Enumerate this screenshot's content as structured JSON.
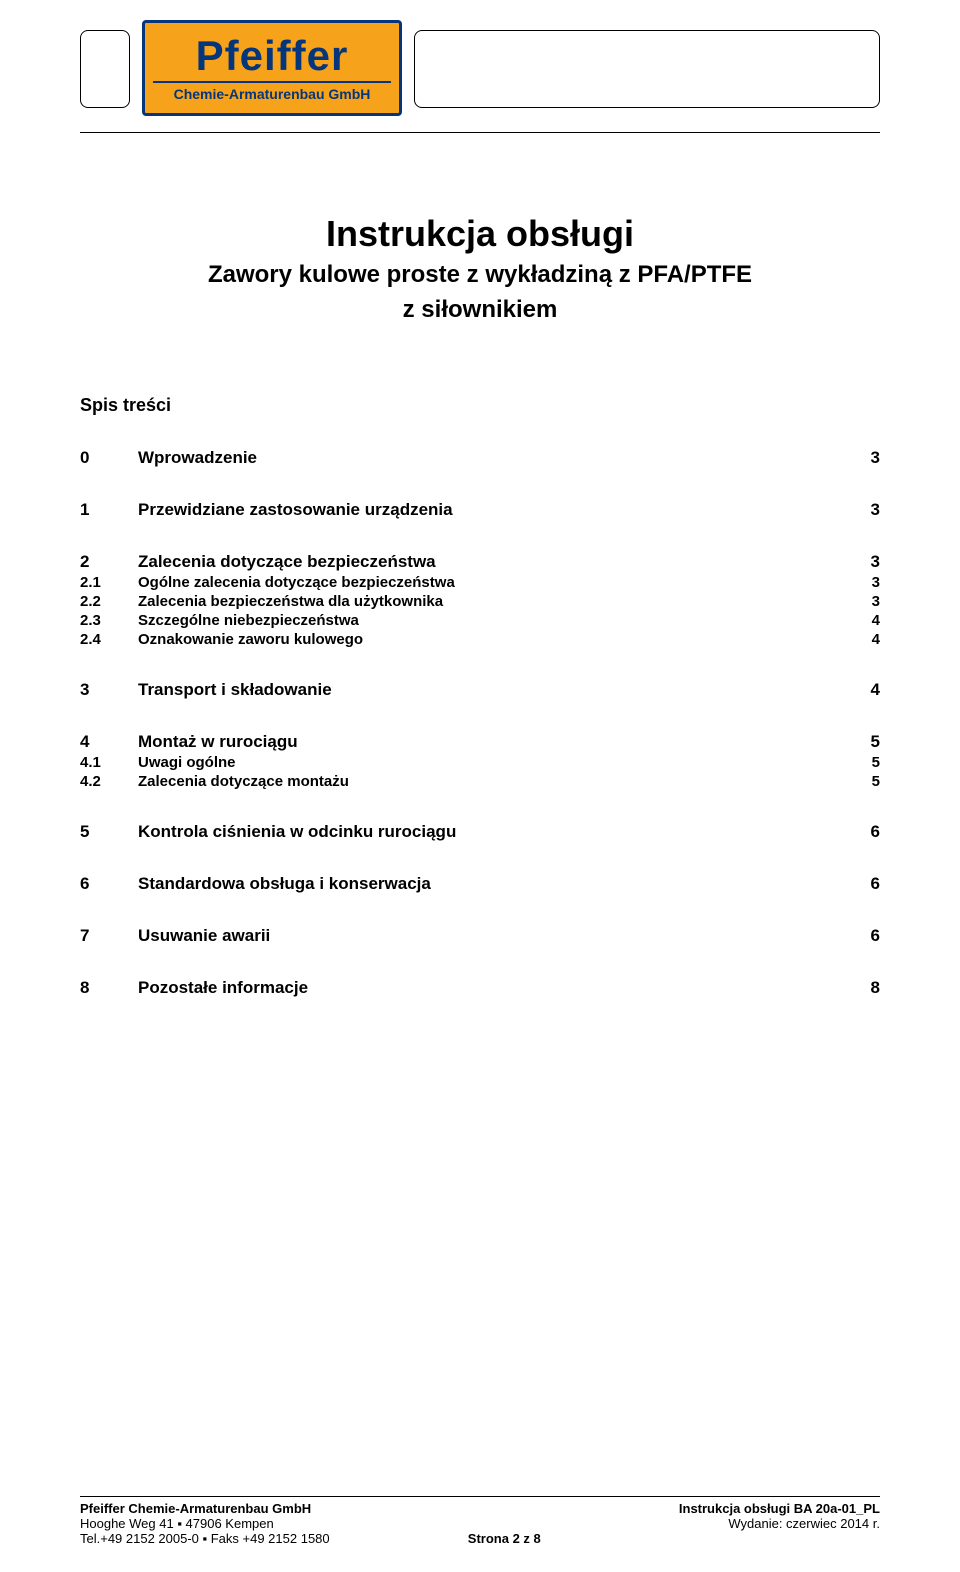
{
  "logo": {
    "main": "Pfeiffer",
    "sub": "Chemie-Armaturenbau GmbH"
  },
  "title": {
    "main": "Instrukcja obsługi",
    "sub1": "Zawory kulowe proste z wykładziną z PFA/PTFE",
    "sub2": "z siłownikiem"
  },
  "toc_heading": "Spis treści",
  "toc": [
    {
      "n": "0",
      "label": "Wprowadzenie",
      "page": "3",
      "type": "section"
    },
    {
      "n": "1",
      "label": "Przewidziane zastosowanie urządzenia",
      "page": "3",
      "type": "section"
    },
    {
      "n": "2",
      "label": "Zalecenia dotyczące bezpieczeństwa",
      "page": "3",
      "type": "section"
    },
    {
      "n": "2.1",
      "label": "Ogólne zalecenia dotyczące bezpieczeństwa",
      "page": "3",
      "type": "sub"
    },
    {
      "n": "2.2",
      "label": "Zalecenia bezpieczeństwa dla użytkownika",
      "page": "3",
      "type": "sub"
    },
    {
      "n": "2.3",
      "label": "Szczególne niebezpieczeństwa",
      "page": "4",
      "type": "sub"
    },
    {
      "n": "2.4",
      "label": "Oznakowanie zaworu kulowego",
      "page": "4",
      "type": "sub"
    },
    {
      "n": "3",
      "label": "Transport i składowanie",
      "page": "4",
      "type": "section"
    },
    {
      "n": "4",
      "label": "Montaż w rurociągu",
      "page": "5",
      "type": "section"
    },
    {
      "n": "4.1",
      "label": "Uwagi ogólne",
      "page": "5",
      "type": "sub"
    },
    {
      "n": "4.2",
      "label": "Zalecenia dotyczące montażu",
      "page": "5",
      "type": "sub"
    },
    {
      "n": "5",
      "label": "Kontrola ciśnienia w odcinku rurociągu",
      "page": "6",
      "type": "section"
    },
    {
      "n": "6",
      "label": "Standardowa obsługa i konserwacja",
      "page": "6",
      "type": "section"
    },
    {
      "n": "7",
      "label": "Usuwanie awarii",
      "page": "6",
      "type": "section"
    },
    {
      "n": "8",
      "label": "Pozostałe informacje",
      "page": "8",
      "type": "section"
    }
  ],
  "footer": {
    "company": "Pfeiffer Chemie-Armaturenbau GmbH",
    "address": "Hooghe Weg 41 ▪ 47906 Kempen",
    "phone": "Tel.+49 2152 2005-0 ▪ Faks +49 2152 1580",
    "center": "Strona 2 z 8",
    "doc": "Instrukcja obsługi  BA 20a-01_PL",
    "edition": "Wydanie: czerwiec 2014 r."
  },
  "colors": {
    "logo_bg": "#f6a31b",
    "logo_border": "#05357a",
    "logo_text": "#05357a",
    "page_bg": "#ffffff",
    "text": "#000000"
  },
  "typography": {
    "title_main_pt": 36,
    "title_sub_pt": 24,
    "toc_section_pt": 17,
    "toc_sub_pt": 15,
    "footer_pt": 13
  }
}
